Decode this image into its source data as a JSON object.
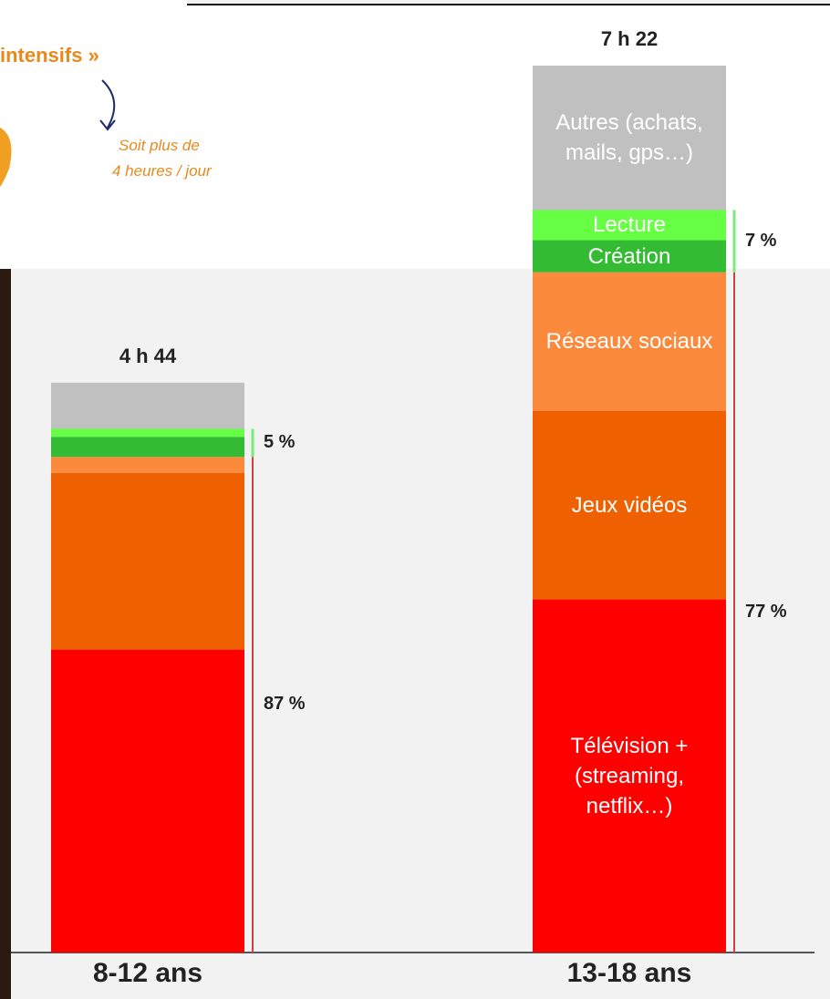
{
  "chart_data": {
    "type": "stacked-bar",
    "categories": [
      "8-12 ans",
      "13-18 ans"
    ],
    "series": [
      {
        "name": "Télévision + (streaming, netflix…)",
        "color": "#ff0000",
        "values": [
          151,
          176
        ]
      },
      {
        "name": "Jeux vidéos",
        "color": "#ef6000",
        "values": [
          88,
          94
        ]
      },
      {
        "name": "Réseaux sociaux",
        "color": "#fb8a3c",
        "values": [
          8,
          69
        ]
      },
      {
        "name": "Création",
        "color": "#33bb33",
        "values": [
          10,
          16
        ]
      },
      {
        "name": "Lecture",
        "color": "#66ff44",
        "values": [
          4,
          15
        ]
      },
      {
        "name": "Autres (achats, mails, gps…)",
        "color": "#c0c0c0",
        "values": [
          23,
          72
        ]
      }
    ],
    "totals": [
      "4 h 44",
      "7 h 22"
    ],
    "screen_shares": [
      "87 %",
      "77 %"
    ],
    "creative_shares": [
      "5 %",
      "7 %"
    ]
  },
  "inset": {
    "title_fragment": "intensifs »",
    "note_line_1": "Soit plus de",
    "note_line_2": "4 heures / jour"
  }
}
